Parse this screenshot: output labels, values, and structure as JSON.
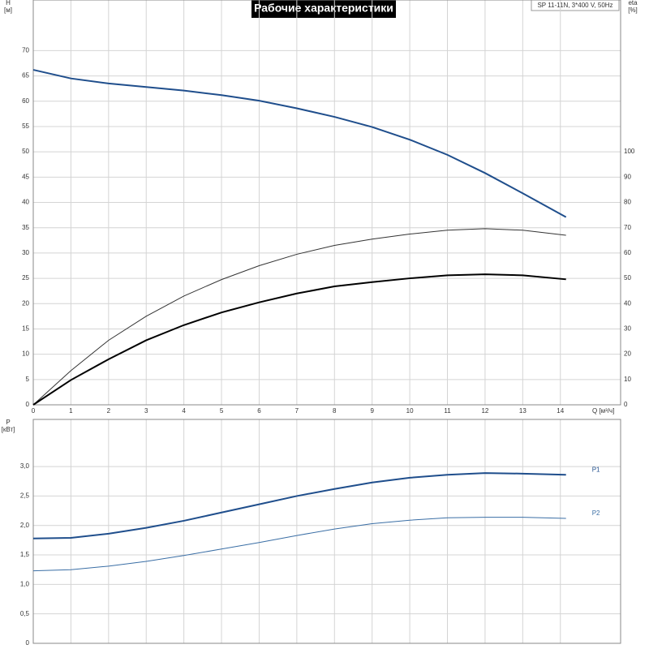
{
  "title": "Рабочие характеристики",
  "model": "SP 11-11N, 3*400 V, 50Hz",
  "chart_data": [
    {
      "type": "line",
      "ylabel": [
        "H",
        "[м]"
      ],
      "y2label": [
        "eta",
        "[%]"
      ],
      "xlabel": "Q [м³/ч]",
      "xlim": [
        0,
        15.6
      ],
      "xticks": [
        0,
        1,
        2,
        3,
        4,
        5,
        6,
        7,
        8,
        9,
        10,
        11,
        12,
        13,
        14
      ],
      "ylim": [
        0,
        80
      ],
      "yticks": [
        0,
        5,
        10,
        15,
        20,
        25,
        30,
        35,
        40,
        45,
        50,
        55,
        60,
        65,
        70
      ],
      "y2lim": [
        0,
        160
      ],
      "y2ticks": [
        0,
        10,
        20,
        30,
        40,
        50,
        60,
        70,
        80,
        90,
        100
      ],
      "grid": true,
      "x": [
        0,
        1,
        2,
        3,
        4,
        5,
        6,
        7,
        8,
        9,
        10,
        11,
        12,
        13,
        14.15
      ],
      "series": [
        {
          "color": "#1f4e8c",
          "width": 2,
          "values": [
            66.2,
            64.5,
            63.5,
            62.8,
            62.1,
            61.2,
            60.1,
            58.6,
            56.9,
            54.9,
            52.4,
            49.4,
            45.8,
            41.8,
            37.1
          ]
        },
        {
          "color": "#333333",
          "width": 1,
          "axis": "y2",
          "values": [
            0,
            13.5,
            25.5,
            35,
            43,
            49.5,
            55,
            59.5,
            63,
            65.5,
            67.5,
            69,
            69.6,
            69,
            67
          ]
        },
        {
          "color": "#000000",
          "width": 2,
          "axis": "y2",
          "values": [
            0,
            9.8,
            18,
            25.5,
            31.5,
            36.5,
            40.5,
            44,
            46.8,
            48.5,
            50,
            51.2,
            51.6,
            51.2,
            49.6
          ]
        }
      ]
    },
    {
      "type": "line",
      "ylabel": [
        "P",
        "[кВт]"
      ],
      "xlim": [
        0,
        15.6
      ],
      "xticks": [
        0,
        1,
        2,
        3,
        4,
        5,
        6,
        7,
        8,
        9,
        10,
        11,
        12,
        13,
        14
      ],
      "ylim": [
        0,
        3.8
      ],
      "yticks": [
        0,
        {
          "value": 0.5,
          "label": "0,5"
        },
        {
          "value": 1,
          "label": "1,0"
        },
        {
          "value": 1.5,
          "label": "1,5"
        },
        {
          "value": 2,
          "label": "2,0"
        },
        {
          "value": 2.5,
          "label": "2,5"
        },
        {
          "value": 3,
          "label": "3,0"
        }
      ],
      "grid": true,
      "x": [
        0,
        1,
        2,
        3,
        4,
        5,
        6,
        7,
        8,
        9,
        10,
        11,
        12,
        13,
        14.15
      ],
      "series": [
        {
          "name": "P1",
          "color": "#1f4e8c",
          "width": 2,
          "values": [
            1.78,
            1.79,
            1.86,
            1.96,
            2.08,
            2.22,
            2.36,
            2.5,
            2.62,
            2.73,
            2.81,
            2.86,
            2.89,
            2.88,
            2.86
          ]
        },
        {
          "name": "P2",
          "color": "#3a6ea5",
          "width": 1,
          "values": [
            1.23,
            1.25,
            1.31,
            1.39,
            1.49,
            1.6,
            1.71,
            1.83,
            1.94,
            2.03,
            2.09,
            2.13,
            2.14,
            2.14,
            2.12
          ]
        }
      ]
    }
  ]
}
